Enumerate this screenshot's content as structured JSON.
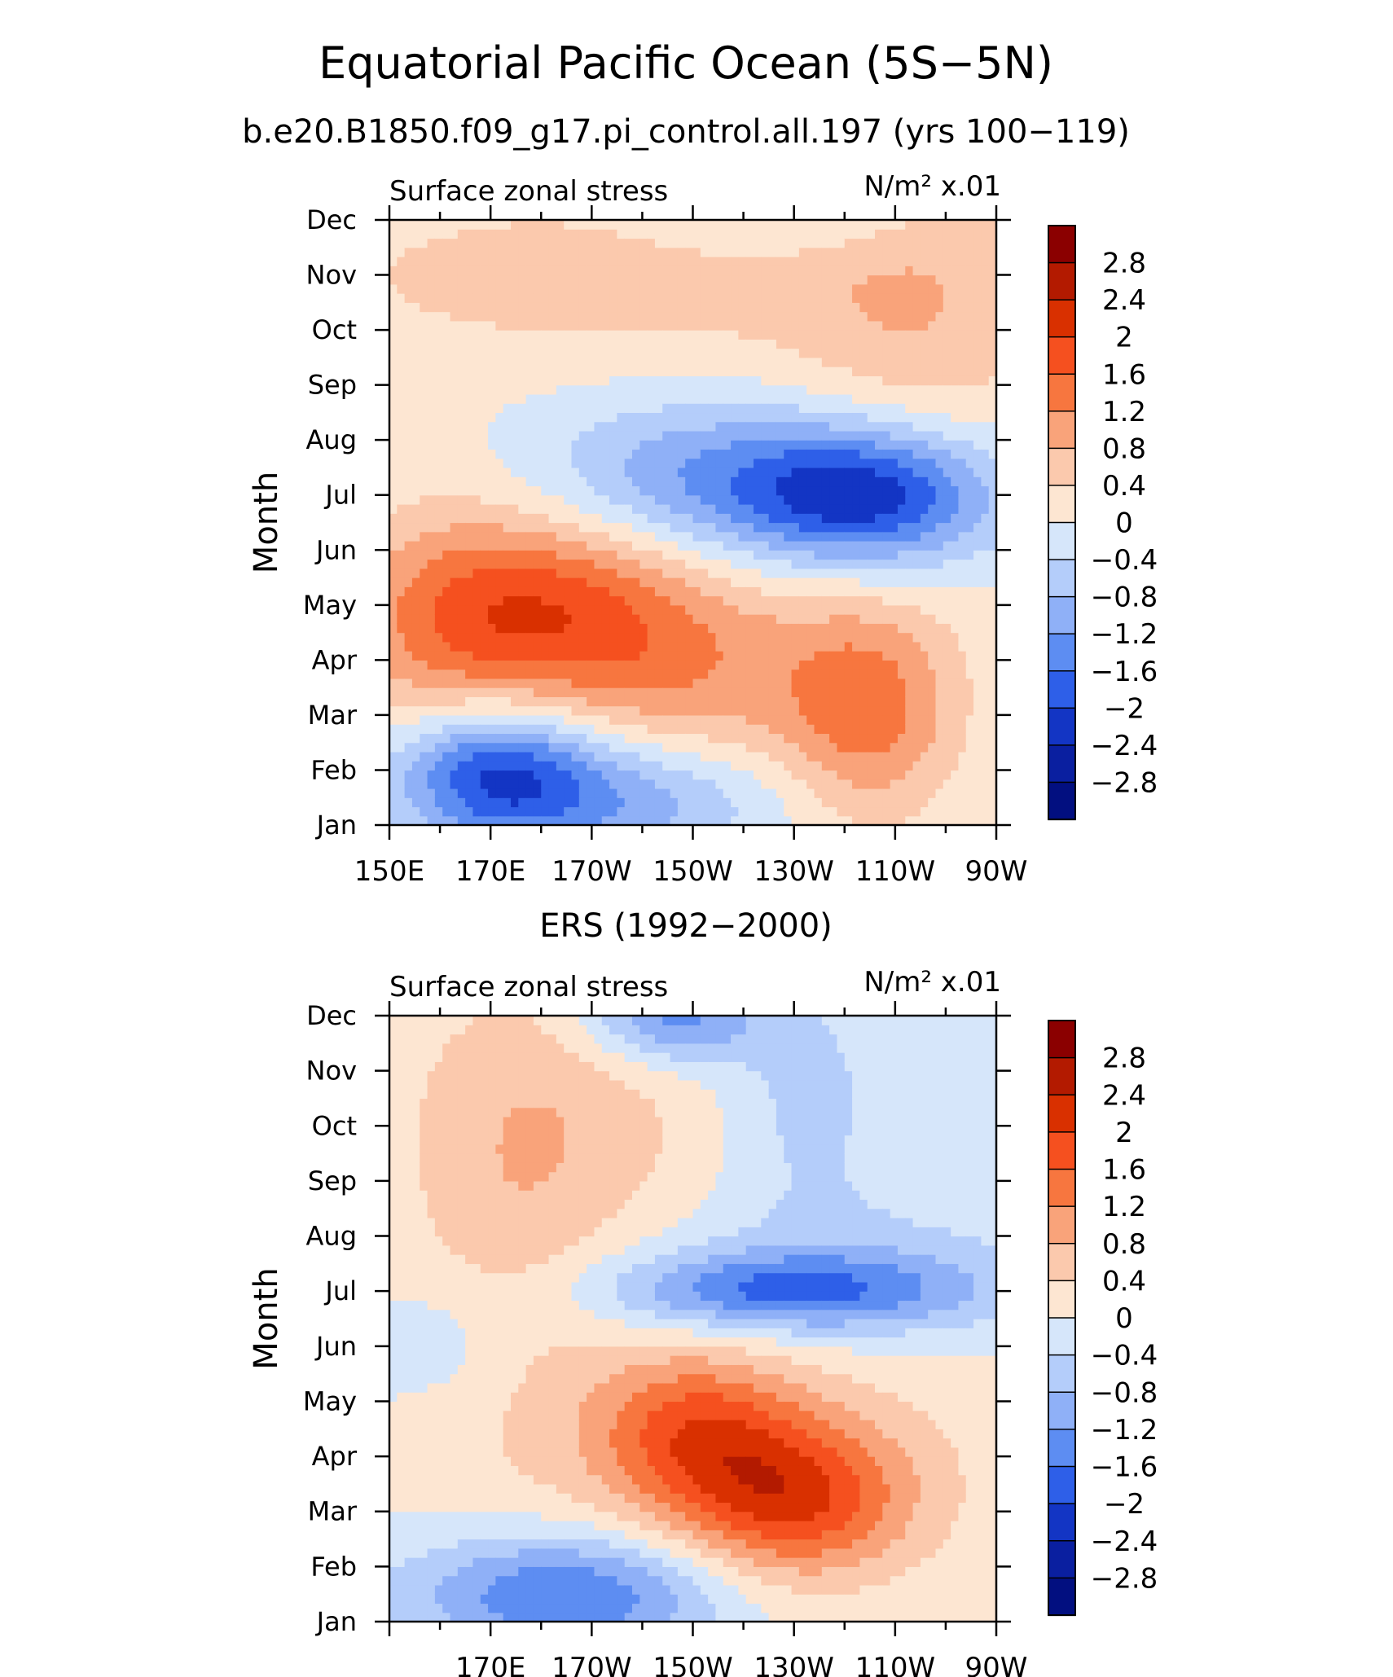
{
  "title": "Equatorial Pacific Ocean (5S−5N)",
  "colorbar_labels": [
    "2.8",
    "2.4",
    "2",
    "1.6",
    "1.2",
    "0.8",
    "0.4",
    "0",
    "−0.4",
    "−0.8",
    "−1.2",
    "−1.6",
    "−2",
    "−2.4",
    "−2.8"
  ],
  "colors": [
    "#8b0000",
    "#b31a00",
    "#d93000",
    "#f5501f",
    "#f7763f",
    "#f9a37a",
    "#fbc9ad",
    "#fde6d2",
    "#d6e6fa",
    "#b4cdfa",
    "#8fb0f7",
    "#5d8df2",
    "#2e5fe8",
    "#1335c4",
    "#0a1fa0",
    "#020f80"
  ],
  "chart_data": [
    {
      "type": "heatmap",
      "title": "b.e20.B1850.f09_g17.pi_control.all.197 (yrs 100−119)",
      "left_label": "Surface zonal stress",
      "units_label": "N/m² x.01",
      "ylabel": "Month",
      "x_tick_labels": [
        "150E",
        "170E",
        "170W",
        "150W",
        "130W",
        "110W",
        "90W"
      ],
      "x_range_deg_east": [
        150,
        270
      ],
      "y_tick_labels": [
        "Jan",
        "Feb",
        "Mar",
        "Apr",
        "May",
        "Jun",
        "Jul",
        "Aug",
        "Sep",
        "Oct",
        "Nov",
        "Dec"
      ],
      "contour_levels": [
        -2.8,
        -2.4,
        -2,
        -1.6,
        -1.2,
        -0.8,
        -0.4,
        0,
        0.4,
        0.8,
        1.2,
        1.6,
        2,
        2.4,
        2.8
      ],
      "blobs": [
        {
          "lon": 180,
          "month": 5.0,
          "amp": 1.6,
          "slon": 22,
          "smon": 1.2
        },
        {
          "lon": 210,
          "month": 3.7,
          "amp": 0.9,
          "slon": 26,
          "smon": 1.3
        },
        {
          "lon": 245,
          "month": 3.0,
          "amp": 1.2,
          "slon": 12,
          "smon": 1.4
        },
        {
          "lon": 160,
          "month": 4.0,
          "amp": 0.6,
          "slon": 14,
          "smon": 2.0
        },
        {
          "lon": 245,
          "month": 7.0,
          "amp": -2.3,
          "slon": 18,
          "smon": 0.9
        },
        {
          "lon": 210,
          "month": 7.3,
          "amp": -1.1,
          "slon": 22,
          "smon": 1.0
        },
        {
          "lon": 170,
          "month": 2.0,
          "amp": -2.0,
          "slon": 14,
          "smon": 0.9
        },
        {
          "lon": 195,
          "month": 1.5,
          "amp": -1.1,
          "slon": 22,
          "smon": 0.8
        },
        {
          "lon": 195,
          "month": 11.0,
          "amp": 0.6,
          "slon": 50,
          "smon": 1.2
        },
        {
          "lon": 255,
          "month": 10.0,
          "amp": 0.6,
          "slon": 18,
          "smon": 2.5
        },
        {
          "lon": 230,
          "month": 12.0,
          "amp": -0.5,
          "slon": 20,
          "smon": 0.5
        }
      ]
    },
    {
      "type": "heatmap",
      "title": "ERS (1992−2000)",
      "left_label": "Surface zonal stress",
      "units_label": "N/m² x.01",
      "ylabel": "Month",
      "x_tick_labels": [
        "170E",
        "170W",
        "150W",
        "130W",
        "110W",
        "90W"
      ],
      "x_range_deg_east": [
        150,
        270
      ],
      "y_tick_labels": [
        "Jan",
        "Feb",
        "Mar",
        "Apr",
        "May",
        "Jun",
        "Jul",
        "Aug",
        "Sep",
        "Oct",
        "Nov",
        "Dec"
      ],
      "contour_levels": [
        -2.8,
        -2.4,
        -2,
        -1.6,
        -1.2,
        -0.8,
        -0.4,
        0,
        0.4,
        0.8,
        1.2,
        1.6,
        2,
        2.4,
        2.8
      ],
      "blobs": [
        {
          "lon": 230,
          "month": 3.2,
          "amp": 1.7,
          "slon": 16,
          "smon": 1.0
        },
        {
          "lon": 210,
          "month": 4.5,
          "amp": 1.3,
          "slon": 14,
          "smon": 1.0
        },
        {
          "lon": 220,
          "month": 4.0,
          "amp": 0.5,
          "slon": 35,
          "smon": 1.6
        },
        {
          "lon": 228,
          "month": 7.0,
          "amp": -1.5,
          "slon": 26,
          "smon": 0.5
        },
        {
          "lon": 240,
          "month": 7.5,
          "amp": -0.5,
          "slon": 32,
          "smon": 1.0
        },
        {
          "lon": 185,
          "month": 1.5,
          "amp": -1.7,
          "slon": 22,
          "smon": 0.8
        },
        {
          "lon": 206,
          "month": 12.0,
          "amp": -1.5,
          "slon": 12,
          "smon": 0.6
        },
        {
          "lon": 232,
          "month": 10.5,
          "amp": -0.6,
          "slon": 12,
          "smon": 1.5
        },
        {
          "lon": 185,
          "month": 10.0,
          "amp": 0.55,
          "slon": 25,
          "smon": 2.0
        },
        {
          "lon": 175,
          "month": 8.0,
          "amp": 0.4,
          "slon": 14,
          "smon": 3.0
        },
        {
          "lon": 160,
          "month": 6.0,
          "amp": -0.4,
          "slon": 12,
          "smon": 0.7
        }
      ]
    }
  ]
}
